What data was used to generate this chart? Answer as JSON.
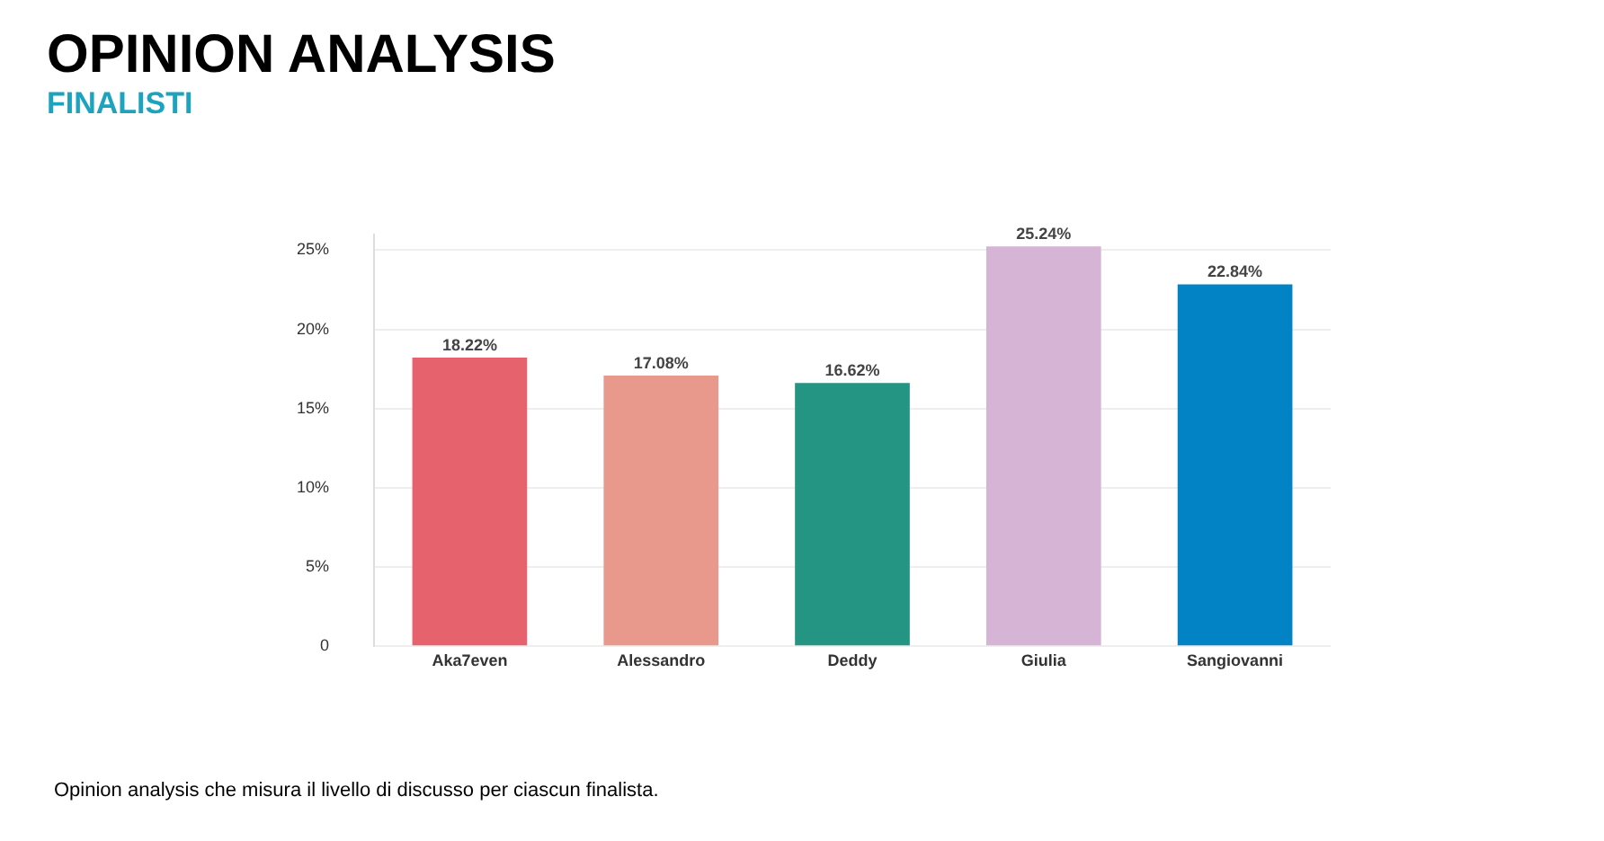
{
  "chart_data": {
    "type": "bar",
    "title": "OPINION ANALYSIS",
    "subtitle": "FINALISTI",
    "categories": [
      "Aka7even",
      "Alessandro",
      "Deddy",
      "Giulia",
      "Sangiovanni"
    ],
    "values": [
      18.22,
      17.08,
      16.62,
      25.24,
      22.84
    ],
    "colors": [
      "#e6636e",
      "#e9998b",
      "#249483",
      "#d6b4d6",
      "#0283c6"
    ],
    "value_labels": [
      "18.22%",
      "17.08%",
      "16.62%",
      "25.24%",
      "22.84%"
    ],
    "ylim": [
      0,
      26
    ],
    "yticks": [
      {
        "value": 0,
        "label": "0"
      },
      {
        "value": 5,
        "label": "5%"
      },
      {
        "value": 10,
        "label": "10%"
      },
      {
        "value": 15,
        "label": "15%"
      },
      {
        "value": 20,
        "label": "20%"
      },
      {
        "value": 25,
        "label": "25%"
      }
    ],
    "grid": "y",
    "annotations": [
      "Opinion analysis che misura il livello di discusso per ciascun finalista."
    ]
  }
}
